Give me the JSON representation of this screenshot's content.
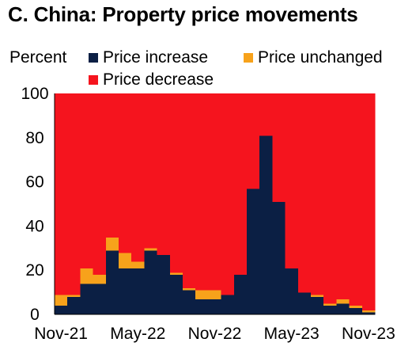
{
  "title": "C. China: Property price movements",
  "colors": {
    "increase": "#0b1f44",
    "unchanged": "#f7a21b",
    "decrease": "#f5141e"
  },
  "chart_data": {
    "type": "bar",
    "stacked": true,
    "ylabel": "Percent",
    "ylim": [
      0,
      100
    ],
    "yticks": [
      0,
      20,
      40,
      60,
      80,
      100
    ],
    "grid": false,
    "legend_position": "top",
    "x_tick_labels": [
      "Nov-21",
      "May-22",
      "Nov-22",
      "May-23",
      "Nov-23"
    ],
    "x_tick_indices": [
      0,
      6,
      12,
      18,
      24
    ],
    "categories": [
      "Nov-21",
      "Dec-21",
      "Jan-22",
      "Feb-22",
      "Mar-22",
      "Apr-22",
      "May-22",
      "Jun-22",
      "Jul-22",
      "Aug-22",
      "Sep-22",
      "Oct-22",
      "Nov-22",
      "Dec-22",
      "Jan-23",
      "Feb-23",
      "Mar-23",
      "Apr-23",
      "May-23",
      "Jun-23",
      "Jul-23",
      "Aug-23",
      "Sep-23",
      "Oct-23",
      "Nov-23"
    ],
    "series": [
      {
        "name": "Price increase",
        "values": [
          4,
          8,
          14,
          14,
          29,
          21,
          21,
          29,
          27,
          18,
          11,
          7,
          7,
          9,
          18,
          57,
          81,
          51,
          21,
          10,
          8,
          4,
          5,
          3,
          1
        ]
      },
      {
        "name": "Price unchanged",
        "values": [
          5,
          1,
          7,
          4,
          6,
          7,
          3,
          1,
          0,
          1,
          1,
          4,
          4,
          0,
          0,
          0,
          0,
          0,
          0,
          0,
          1,
          1,
          2,
          1,
          1
        ]
      },
      {
        "name": "Price decrease",
        "values": [
          91,
          91,
          79,
          82,
          65,
          72,
          76,
          70,
          73,
          81,
          88,
          89,
          89,
          91,
          82,
          43,
          19,
          49,
          79,
          90,
          91,
          95,
          93,
          96,
          98
        ]
      }
    ]
  }
}
